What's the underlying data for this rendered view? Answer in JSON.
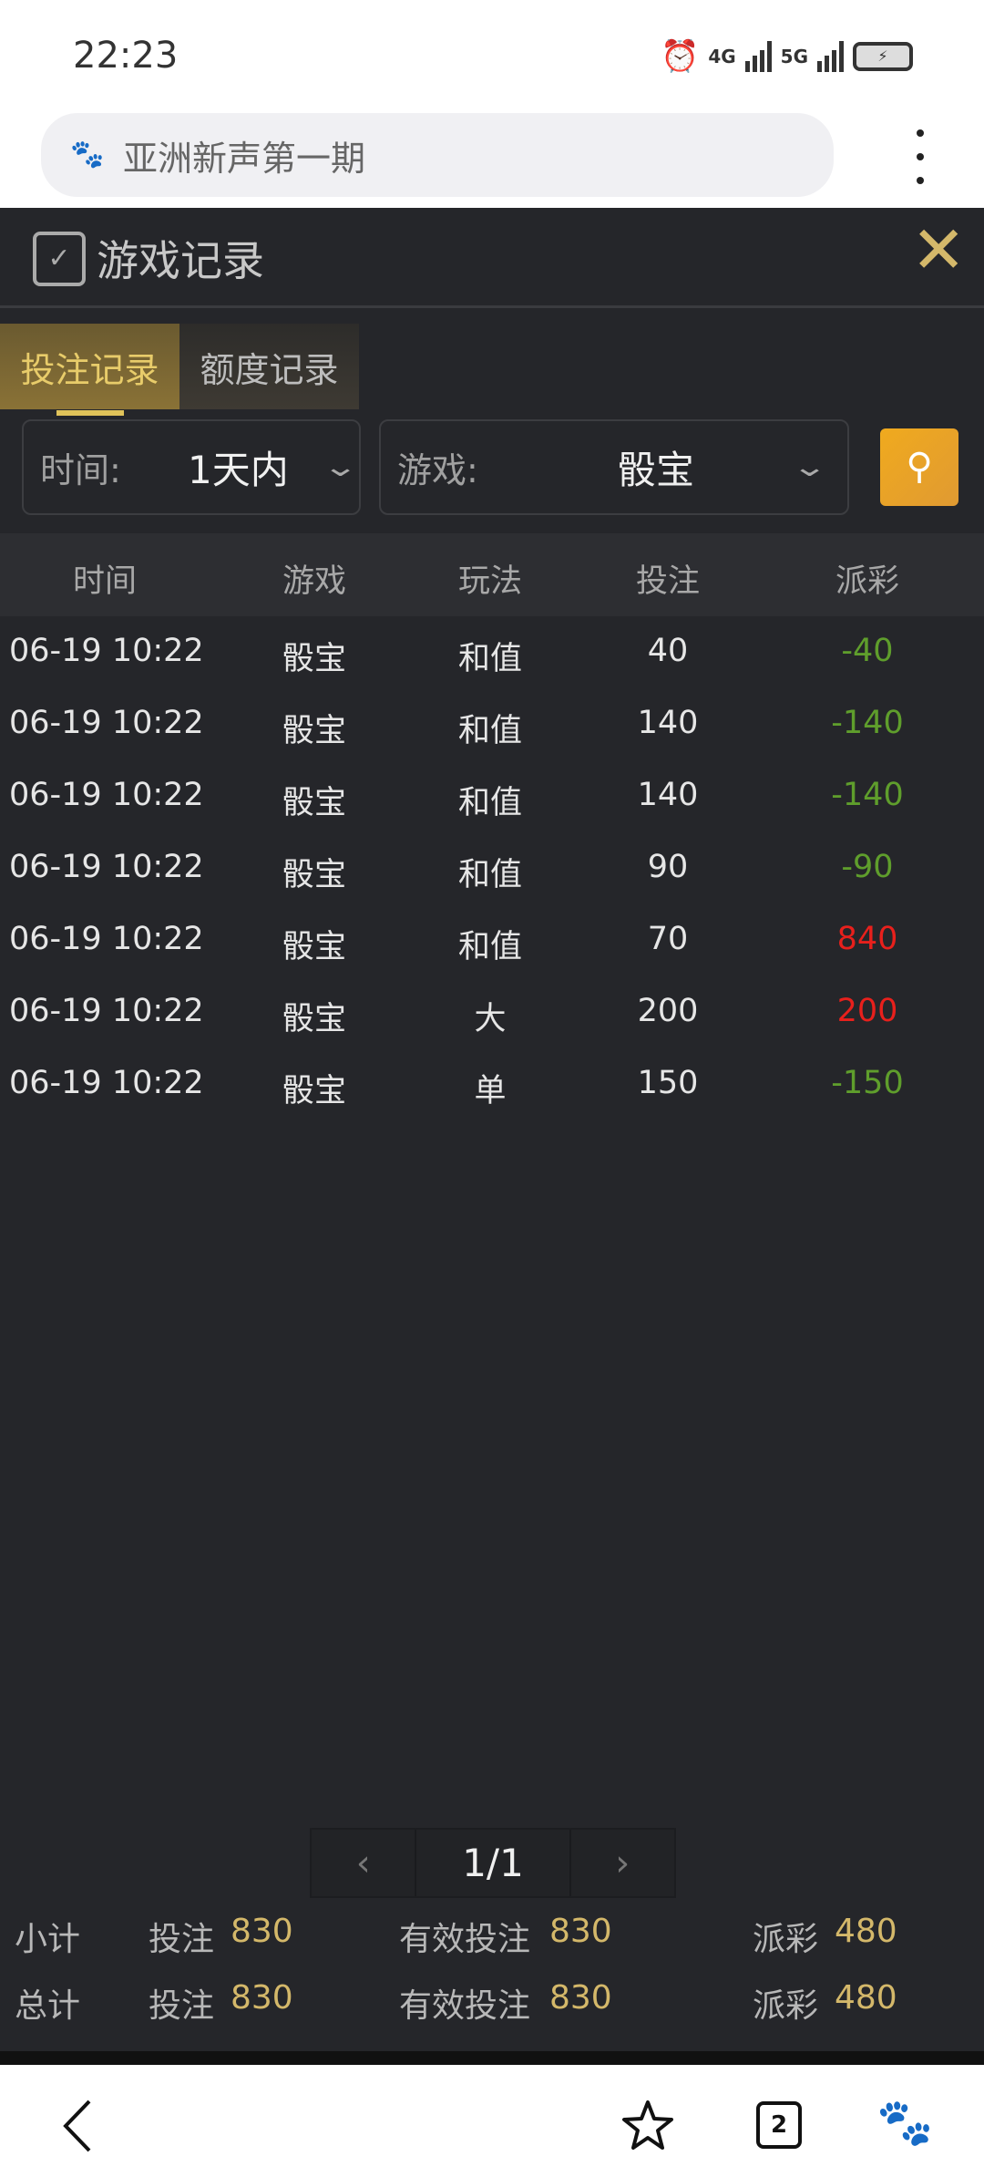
{
  "status_bar": {
    "time": "22:23",
    "network1": "4G",
    "network2": "5G",
    "icons": [
      "alarm-icon",
      "signal-icon",
      "signal-icon",
      "battery-charging-icon"
    ]
  },
  "browser": {
    "url_text": "亚洲新声第一期",
    "site_icon": "baidu-paw-icon",
    "menu_icon": "more-vertical-icon"
  },
  "panel": {
    "title": "游戏记录",
    "title_icon": "clipboard-check-icon",
    "close_icon": "close-icon",
    "tabs": [
      {
        "label": "投注记录",
        "active": true
      },
      {
        "label": "额度记录",
        "active": false
      }
    ],
    "filters": {
      "time_label": "时间:",
      "time_value": "1天内",
      "game_label": "游戏:",
      "game_value": "骰宝"
    },
    "table": {
      "headers": [
        "时间",
        "游戏",
        "玩法",
        "投注",
        "派彩"
      ],
      "rows": [
        [
          "06-19 10:22",
          "骰宝",
          "和值",
          "40",
          "-40"
        ],
        [
          "06-19 10:22",
          "骰宝",
          "和值",
          "140",
          "-140"
        ],
        [
          "06-19 10:22",
          "骰宝",
          "和值",
          "140",
          "-140"
        ],
        [
          "06-19 10:22",
          "骰宝",
          "和值",
          "90",
          "-90"
        ],
        [
          "06-19 10:22",
          "骰宝",
          "和值",
          "70",
          "840"
        ],
        [
          "06-19 10:22",
          "骰宝",
          "大",
          "200",
          "200"
        ],
        [
          "06-19 10:22",
          "骰宝",
          "单",
          "150",
          "-150"
        ]
      ]
    },
    "pager": {
      "prev": "‹",
      "page": "1/1",
      "next": "›"
    },
    "summary": [
      {
        "label": "小计",
        "bet_label": "投注",
        "bet": "830",
        "valid_label": "有效投注",
        "valid": "830",
        "payout_label": "派彩",
        "payout": "480"
      },
      {
        "label": "总计",
        "bet_label": "投注",
        "bet": "830",
        "valid_label": "有效投注",
        "valid": "830",
        "payout_label": "派彩",
        "payout": "480"
      }
    ]
  },
  "colors": {
    "accent": "#d4b86a",
    "win": "#e8201c",
    "loss": "#5f9e2c",
    "background": "#25262a"
  },
  "bottom_nav": {
    "tab_count": "2",
    "icons": [
      "back-icon",
      "star-icon",
      "tabs-icon",
      "baidu-icon"
    ]
  }
}
